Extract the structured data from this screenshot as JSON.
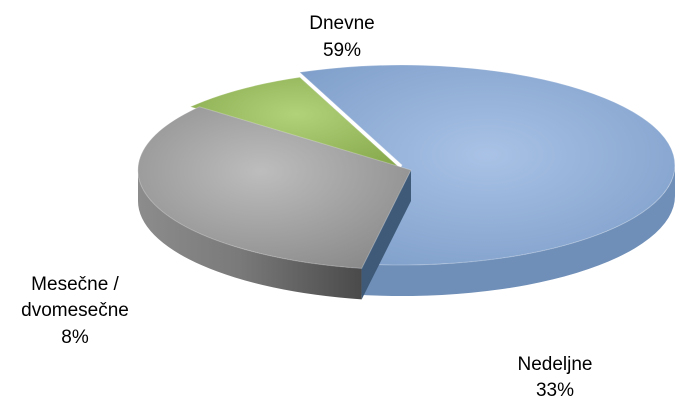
{
  "chart_data": {
    "type": "pie",
    "style": "3d-exploded",
    "legend": "none",
    "slices": [
      {
        "label": "Dnevne",
        "value": 59,
        "value_label": "59%",
        "color": "#8eaed8",
        "side_color": "#6f8fb8"
      },
      {
        "label": "Nedeljne",
        "value": 33,
        "value_label": "33%",
        "color": "#a3a3a3",
        "side_color": "#6e6e6e"
      },
      {
        "label": "Mesečne / dvomesečne",
        "label_lines": [
          "Mesečne /",
          "dvomesečne"
        ],
        "value": 8,
        "value_label": "8%",
        "color": "#9bbd5c",
        "side_color": "#5e7f2a"
      }
    ]
  }
}
